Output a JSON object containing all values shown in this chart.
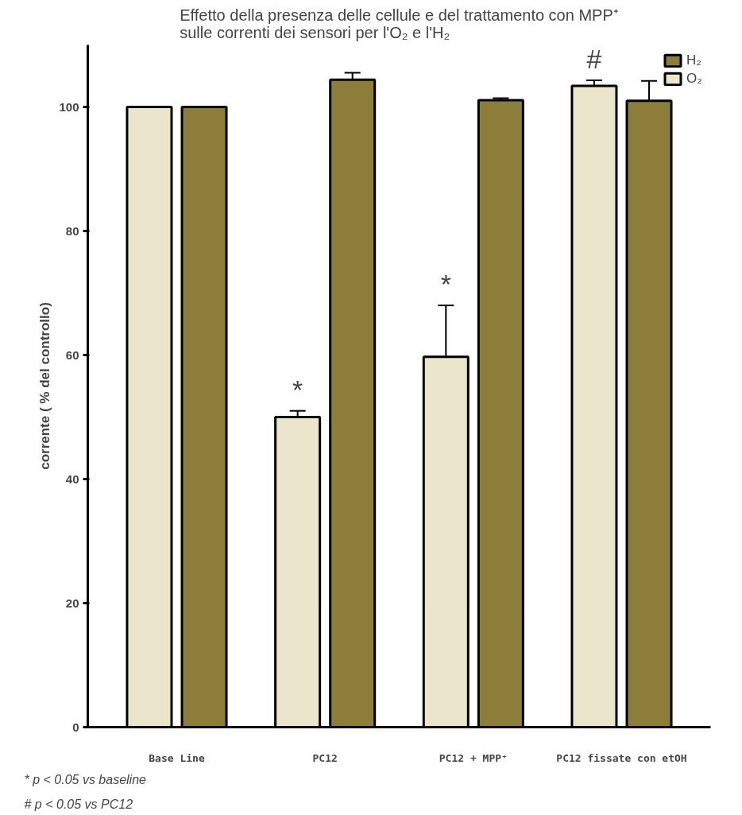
{
  "chart_data": {
    "type": "bar",
    "title": "Effetto della presenza delle cellule e del trattamento con MPP⁺\nsulle correnti dei sensori per l'O₂ e l'H₂",
    "ylabel": "corrente ( % del controllo)",
    "categories": [
      "Base Line",
      "PC12",
      "PC12 + MPP⁺",
      "PC12 fissate con etOH"
    ],
    "series": [
      {
        "name": "O₂",
        "color": "#ebe5cb",
        "values": [
          100,
          50,
          59.7,
          103.4
        ],
        "errors": [
          null,
          1,
          8.3,
          0.9
        ],
        "value_labels": [
          null,
          "*",
          "*",
          "#"
        ]
      },
      {
        "name": "H₂",
        "color": "#8c7d3a",
        "values": [
          100,
          104.4,
          101.1,
          101
        ],
        "errors": [
          null,
          1.1,
          0.3,
          3.2
        ]
      }
    ],
    "ylim": [
      0,
      110
    ],
    "yticks": [
      0,
      20,
      40,
      60,
      80,
      100
    ],
    "grid": false,
    "legend": "top right",
    "annotations": [
      "*  p < 0.05 vs baseline",
      "#  p < 0.05 vs PC12"
    ]
  }
}
